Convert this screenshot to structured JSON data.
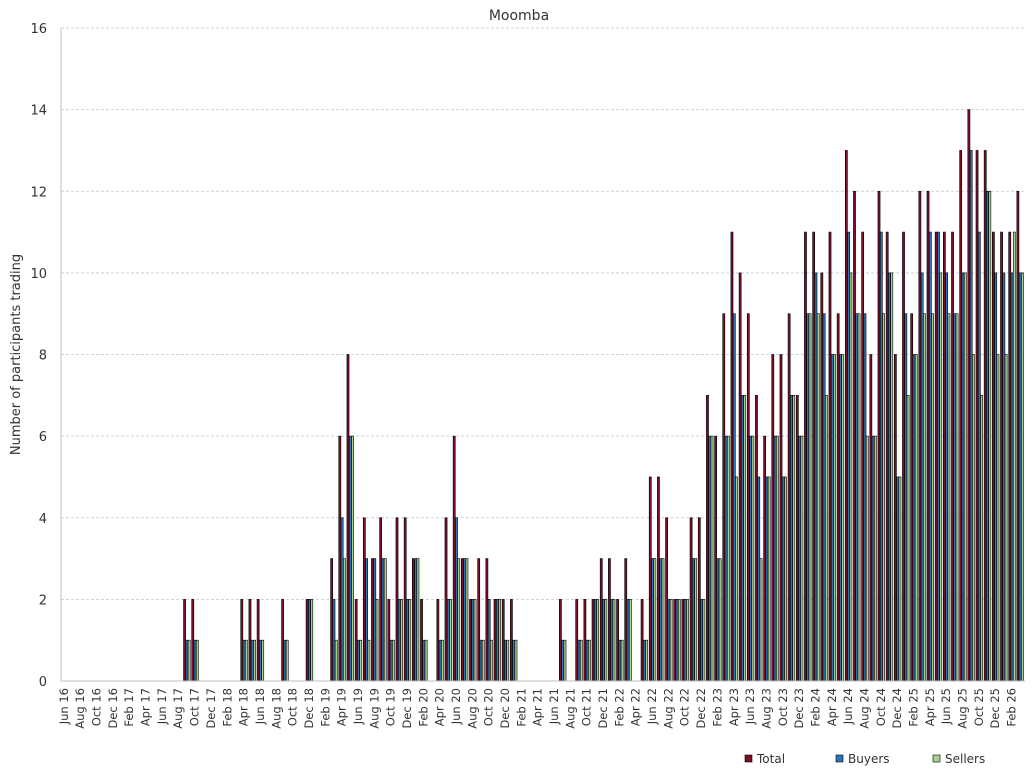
{
  "chart_data": {
    "type": "bar",
    "title": "Moomba",
    "xlabel": "",
    "ylabel": "Number of participants trading",
    "ylim": [
      0,
      16
    ],
    "yticks": [
      0,
      2,
      4,
      6,
      8,
      10,
      12,
      14,
      16
    ],
    "grid": "horizontal dashed",
    "legend_position": "bottom-right",
    "colors": {
      "Total": "#7b0f25",
      "Buyers": "#2e75b6",
      "Sellers": "#a9d18e"
    },
    "x_tick_labels": [
      "Jun 16",
      "Aug 16",
      "Oct 16",
      "Dec 16",
      "Feb 17",
      "Apr 17",
      "Jun 17",
      "Aug 17",
      "Oct 17",
      "Dec 17",
      "Feb 18",
      "Apr 18",
      "Jun 18",
      "Aug 18",
      "Oct 18",
      "Dec 18",
      "Feb 19",
      "Apr 19",
      "Jun 19",
      "Aug 19",
      "Oct 19",
      "Dec 19",
      "Feb 20",
      "Apr 20",
      "Jun 20",
      "Aug 20",
      "Oct 20",
      "Dec 20",
      "Feb 21",
      "Apr 21",
      "Jun 21",
      "Aug 21",
      "Oct 21",
      "Dec 21",
      "Feb 22",
      "Apr 22",
      "Jun 22",
      "Aug 22",
      "Oct 22",
      "Dec 22",
      "Feb 23",
      "Apr 23",
      "Jun 23",
      "Aug 23",
      "Oct 23",
      "Dec 23",
      "Feb 24",
      "Apr 24",
      "Jun 24",
      "Aug 24",
      "Oct 24",
      "Dec 24",
      "Feb 25",
      "Apr 25",
      "Jun 25",
      "Aug 25",
      "Oct 25",
      "Dec 25",
      "Feb 26"
    ],
    "categories": [
      "Jun 16",
      "Jul 16",
      "Aug 16",
      "Sep 16",
      "Oct 16",
      "Nov 16",
      "Dec 16",
      "Jan 17",
      "Feb 17",
      "Mar 17",
      "Apr 17",
      "May 17",
      "Jun 17",
      "Jul 17",
      "Aug 17",
      "Sep 17",
      "Oct 17",
      "Nov 17",
      "Dec 17",
      "Jan 18",
      "Feb 18",
      "Mar 18",
      "Apr 18",
      "May 18",
      "Jun 18",
      "Jul 18",
      "Aug 18",
      "Sep 18",
      "Oct 18",
      "Nov 18",
      "Dec 18",
      "Jan 19",
      "Feb 19",
      "Mar 19",
      "Apr 19",
      "May 19",
      "Jun 19",
      "Jul 19",
      "Aug 19",
      "Sep 19",
      "Oct 19",
      "Nov 19",
      "Dec 19",
      "Jan 20",
      "Feb 20",
      "Mar 20",
      "Apr 20",
      "May 20",
      "Jun 20",
      "Jul 20",
      "Aug 20",
      "Sep 20",
      "Oct 20",
      "Nov 20",
      "Dec 20",
      "Jan 21",
      "Feb 21",
      "Mar 21",
      "Apr 21",
      "May 21",
      "Jun 21",
      "Jul 21",
      "Aug 21",
      "Sep 21",
      "Oct 21",
      "Nov 21",
      "Dec 21",
      "Jan 22",
      "Feb 22",
      "Mar 22",
      "Apr 22",
      "May 22",
      "Jun 22",
      "Jul 22",
      "Aug 22",
      "Sep 22",
      "Oct 22",
      "Nov 22",
      "Dec 22",
      "Jan 23",
      "Feb 23",
      "Mar 23",
      "Apr 23",
      "May 23",
      "Jun 23",
      "Jul 23",
      "Aug 23",
      "Sep 23",
      "Oct 23",
      "Nov 23",
      "Dec 23",
      "Jan 24",
      "Feb 24",
      "Mar 24",
      "Apr 24",
      "May 24",
      "Jun 24",
      "Jul 24",
      "Aug 24",
      "Sep 24",
      "Oct 24",
      "Nov 24",
      "Dec 24",
      "Jan 25",
      "Feb 25",
      "Mar 25",
      "Apr 25",
      "May 25",
      "Jun 25",
      "Jul 25",
      "Aug 25",
      "Sep 25",
      "Oct 25",
      "Nov 25",
      "Dec 25",
      "Jan 26",
      "Feb 26",
      "Mar 26"
    ],
    "series": [
      {
        "name": "Total",
        "values": [
          0,
          0,
          0,
          0,
          0,
          0,
          0,
          0,
          0,
          0,
          0,
          0,
          0,
          0,
          0,
          2,
          2,
          0,
          0,
          0,
          0,
          0,
          2,
          2,
          2,
          0,
          0,
          2,
          0,
          0,
          2,
          0,
          0,
          3,
          6,
          8,
          2,
          4,
          3,
          4,
          2,
          4,
          4,
          3,
          2,
          0,
          2,
          4,
          6,
          3,
          2,
          3,
          3,
          2,
          2,
          2,
          0,
          0,
          0,
          0,
          0,
          2,
          0,
          2,
          2,
          2,
          3,
          3,
          2,
          3,
          0,
          2,
          5,
          5,
          4,
          2,
          2,
          4,
          4,
          7,
          6,
          9,
          11,
          10,
          9,
          7,
          6,
          8,
          8,
          9,
          7,
          11,
          11,
          10,
          11,
          9,
          13,
          12,
          11,
          8,
          12,
          11,
          8,
          11,
          9,
          12,
          12,
          11,
          11,
          11,
          13,
          14,
          13,
          13,
          11,
          11,
          11,
          12
        ]
      },
      {
        "name": "Buyers",
        "values": [
          0,
          0,
          0,
          0,
          0,
          0,
          0,
          0,
          0,
          0,
          0,
          0,
          0,
          0,
          0,
          1,
          1,
          0,
          0,
          0,
          0,
          0,
          1,
          1,
          1,
          0,
          0,
          1,
          0,
          0,
          2,
          0,
          0,
          2,
          4,
          6,
          1,
          3,
          3,
          3,
          1,
          2,
          2,
          3,
          1,
          0,
          1,
          2,
          4,
          3,
          2,
          1,
          2,
          2,
          1,
          1,
          0,
          0,
          0,
          0,
          0,
          1,
          0,
          1,
          1,
          2,
          2,
          2,
          1,
          2,
          0,
          1,
          3,
          3,
          2,
          2,
          2,
          3,
          2,
          6,
          3,
          6,
          9,
          7,
          6,
          5,
          5,
          6,
          5,
          7,
          6,
          9,
          10,
          9,
          8,
          8,
          11,
          9,
          9,
          6,
          11,
          10,
          5,
          9,
          8,
          10,
          11,
          11,
          10,
          9,
          10,
          13,
          11,
          12,
          10,
          10,
          10,
          10
        ]
      },
      {
        "name": "Sellers",
        "values": [
          0,
          0,
          0,
          0,
          0,
          0,
          0,
          0,
          0,
          0,
          0,
          0,
          0,
          0,
          0,
          1,
          1,
          0,
          0,
          0,
          0,
          0,
          1,
          1,
          1,
          0,
          0,
          1,
          0,
          0,
          2,
          0,
          0,
          1,
          3,
          6,
          1,
          1,
          2,
          3,
          1,
          2,
          2,
          3,
          1,
          0,
          1,
          2,
          3,
          3,
          2,
          1,
          1,
          2,
          1,
          1,
          0,
          0,
          0,
          0,
          0,
          1,
          0,
          1,
          1,
          2,
          2,
          2,
          1,
          2,
          0,
          1,
          3,
          3,
          2,
          2,
          2,
          3,
          2,
          6,
          3,
          6,
          5,
          7,
          6,
          3,
          5,
          6,
          5,
          7,
          6,
          9,
          9,
          7,
          8,
          8,
          10,
          9,
          6,
          6,
          9,
          10,
          5,
          7,
          8,
          9,
          9,
          10,
          9,
          9,
          10,
          8,
          7,
          12,
          8,
          8,
          11,
          10
        ]
      }
    ]
  }
}
